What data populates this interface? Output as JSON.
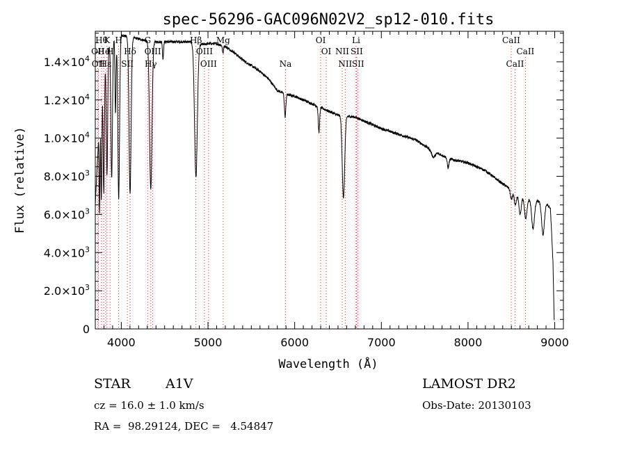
{
  "chart_data": {
    "type": "line",
    "title": "spec-56296-GAC096N02V2_sp12-010.fits",
    "xlabel": "Wavelength (Å)",
    "ylabel": "Flux (relative)",
    "xlim": [
      3700,
      9100
    ],
    "ylim": [
      0,
      15600
    ],
    "xticks": [
      {
        "value": 4000,
        "label": "4000"
      },
      {
        "value": 5000,
        "label": "5000"
      },
      {
        "value": 6000,
        "label": "6000"
      },
      {
        "value": 7000,
        "label": "7000"
      },
      {
        "value": 8000,
        "label": "8000"
      },
      {
        "value": 9000,
        "label": "9000"
      }
    ],
    "yticks": [
      {
        "value": 0,
        "mant": "0",
        "exp": ""
      },
      {
        "value": 2000,
        "mant": "2.0×10",
        "exp": "3"
      },
      {
        "value": 4000,
        "mant": "4.0×10",
        "exp": "3"
      },
      {
        "value": 6000,
        "mant": "6.0×10",
        "exp": "3"
      },
      {
        "value": 8000,
        "mant": "8.0×10",
        "exp": "3"
      },
      {
        "value": 10000,
        "mant": "1.0×10",
        "exp": "4"
      },
      {
        "value": 12000,
        "mant": "1.2×10",
        "exp": "4"
      },
      {
        "value": 14000,
        "mant": "1.4×10",
        "exp": "4"
      }
    ],
    "spectrum": {
      "continuum": [
        [
          3700,
          6500
        ],
        [
          3760,
          12000
        ],
        [
          3830,
          14500
        ],
        [
          3900,
          15200
        ],
        [
          4000,
          15400
        ],
        [
          4100,
          15300
        ],
        [
          4200,
          15200
        ],
        [
          4300,
          15100
        ],
        [
          4400,
          15050
        ],
        [
          4500,
          15050
        ],
        [
          4600,
          15050
        ],
        [
          4700,
          15050
        ],
        [
          4800,
          15050
        ],
        [
          4900,
          14900
        ],
        [
          5000,
          14950
        ],
        [
          5100,
          14950
        ],
        [
          5200,
          14800
        ],
        [
          5300,
          14500
        ],
        [
          5400,
          14100
        ],
        [
          5500,
          13800
        ],
        [
          5600,
          13500
        ],
        [
          5700,
          13100
        ],
        [
          5800,
          12500
        ],
        [
          5900,
          12300
        ],
        [
          6000,
          12200
        ],
        [
          6100,
          12000
        ],
        [
          6200,
          11800
        ],
        [
          6300,
          11600
        ],
        [
          6400,
          11400
        ],
        [
          6500,
          11200
        ],
        [
          6600,
          11150
        ],
        [
          6700,
          11100
        ],
        [
          6800,
          10900
        ],
        [
          7000,
          10500
        ],
        [
          7200,
          10200
        ],
        [
          7400,
          9900
        ],
        [
          7600,
          9300
        ],
        [
          7800,
          8900
        ],
        [
          8000,
          8700
        ],
        [
          8200,
          8300
        ],
        [
          8400,
          7600
        ],
        [
          8500,
          7300
        ],
        [
          8600,
          7000
        ],
        [
          8700,
          6800
        ],
        [
          8800,
          6700
        ],
        [
          8900,
          6600
        ],
        [
          8950,
          6300
        ],
        [
          8980,
          3500
        ],
        [
          8995,
          200
        ]
      ],
      "absorption": [
        {
          "center": 3750,
          "depth": 5000,
          "width": 5
        },
        {
          "center": 3770,
          "depth": 5600,
          "width": 6
        },
        {
          "center": 3798,
          "depth": 6200,
          "width": 7
        },
        {
          "center": 3835,
          "depth": 6500,
          "width": 8
        },
        {
          "center": 3889,
          "depth": 7200,
          "width": 9
        },
        {
          "center": 3933,
          "depth": 4000,
          "width": 6
        },
        {
          "center": 3970,
          "depth": 8500,
          "width": 10
        },
        {
          "center": 4101,
          "depth": 8200,
          "width": 12
        },
        {
          "center": 4340,
          "depth": 7800,
          "width": 14
        },
        {
          "center": 4481,
          "depth": 900,
          "width": 6
        },
        {
          "center": 4861,
          "depth": 7000,
          "width": 16
        },
        {
          "center": 5172,
          "depth": 400,
          "width": 6
        },
        {
          "center": 5890,
          "depth": 1200,
          "width": 8
        },
        {
          "center": 6280,
          "depth": 1300,
          "width": 8
        },
        {
          "center": 6563,
          "depth": 4300,
          "width": 14
        },
        {
          "center": 7600,
          "depth": 300,
          "width": 20
        },
        {
          "center": 7770,
          "depth": 500,
          "width": 10
        },
        {
          "center": 8500,
          "depth": 500,
          "width": 12
        },
        {
          "center": 8545,
          "depth": 700,
          "width": 12
        },
        {
          "center": 8600,
          "depth": 1000,
          "width": 14
        },
        {
          "center": 8665,
          "depth": 1100,
          "width": 14
        },
        {
          "center": 8750,
          "depth": 1500,
          "width": 16
        },
        {
          "center": 8865,
          "depth": 1700,
          "width": 16
        }
      ]
    },
    "lines": [
      {
        "wavelength": 3730,
        "label": "OII",
        "row": 2
      },
      {
        "wavelength": 3736,
        "label": "OII",
        "row": 3
      },
      {
        "wavelength": 3772,
        "label": "Hθ",
        "row": 1
      },
      {
        "wavelength": 3798,
        "label": "He",
        "row": 2
      },
      {
        "wavelength": 3820,
        "label": "Hε",
        "row": 3
      },
      {
        "wavelength": 3835,
        "label": "K",
        "row": 1
      },
      {
        "wavelength": 3870,
        "label": "H",
        "row": 2
      },
      {
        "wavelength": 3970,
        "label": "H",
        "row": 1
      },
      {
        "wavelength": 4101,
        "label": "Hδ",
        "row": 2
      },
      {
        "wavelength": 4070,
        "label": "SII",
        "row": 3
      },
      {
        "wavelength": 4304,
        "label": "G",
        "row": 1
      },
      {
        "wavelength": 4363,
        "label": "OIII",
        "row": 2
      },
      {
        "wavelength": 4340,
        "label": "Hγ",
        "row": 3
      },
      {
        "wavelength": 4861,
        "label": "Hβ",
        "row": 1
      },
      {
        "wavelength": 4959,
        "label": "OIII",
        "row": 2
      },
      {
        "wavelength": 5007,
        "label": "OIII",
        "row": 3
      },
      {
        "wavelength": 5175,
        "label": "Mg",
        "row": 1
      },
      {
        "wavelength": 5894,
        "label": "Na",
        "row": 3
      },
      {
        "wavelength": 6300,
        "label": "OI",
        "row": 1
      },
      {
        "wavelength": 6364,
        "label": "OI",
        "row": 2
      },
      {
        "wavelength": 6548,
        "label": "NII",
        "row": 2
      },
      {
        "wavelength": 6583,
        "label": "NII",
        "row": 3
      },
      {
        "wavelength": 6708,
        "label": "Li",
        "row": 1
      },
      {
        "wavelength": 6716,
        "label": "SII",
        "row": 2
      },
      {
        "wavelength": 6731,
        "label": "SII",
        "row": 3
      },
      {
        "wavelength": 8498,
        "label": "CaII",
        "row": 1
      },
      {
        "wavelength": 8542,
        "label": "CaII",
        "row": 3
      },
      {
        "wavelength": 8662,
        "label": "CaII",
        "row": 2
      }
    ],
    "line_color": "#dd2222"
  },
  "info": {
    "class_type": "STAR",
    "subclass": "A1V",
    "survey": "LAMOST DR2",
    "cz": "cz = 16.0 ± 1.0 km/s",
    "obs_date": "Obs-Date: 20130103",
    "coords": "RA =  98.29124, DEC =   4.54847"
  }
}
